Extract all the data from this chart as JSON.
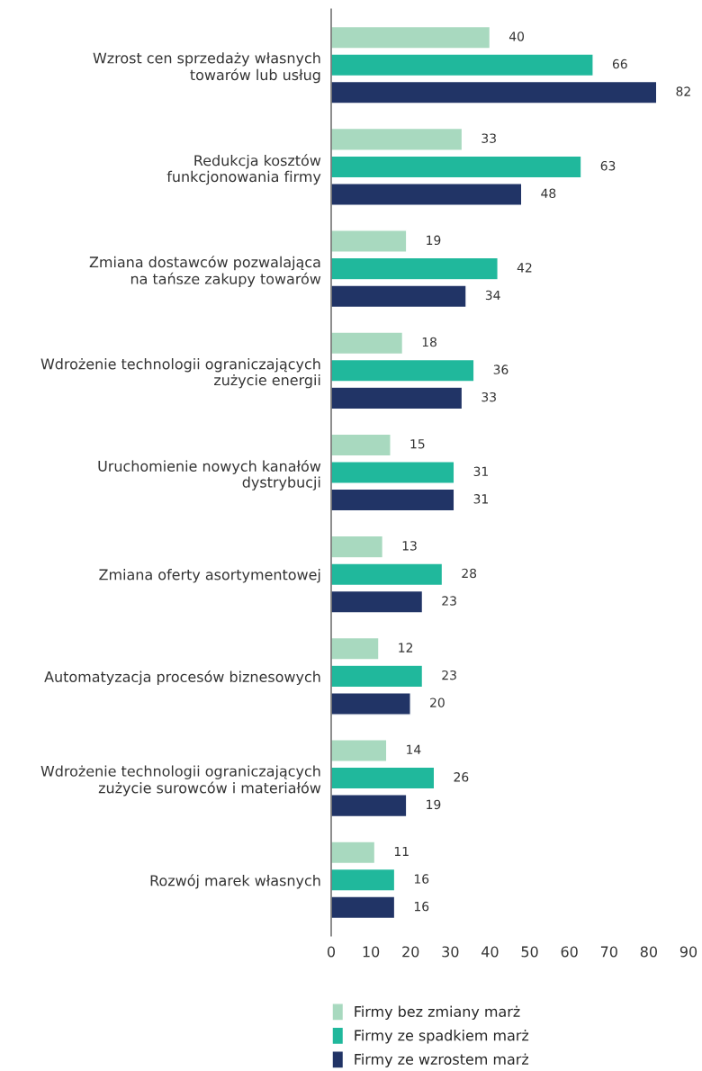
{
  "chart_data": {
    "type": "bar",
    "orientation": "horizontal",
    "categories": [
      "Wzrost cen sprzedaży własnych\ntowarów lub usług",
      "Redukcja kosztów\nfunkcjonowania firmy",
      "Zmiana dostawców pozwalająca\nna tańsze zakupy towarów",
      "Wdrożenie technologii ograniczających\nzużycie energii",
      "Uruchomienie nowych kanałów\ndystrybucji",
      "Zmiana oferty asortymentowej",
      "Automatyzacja procesów biznesowych",
      "Wdrożenie technologii ograniczających\nzużycie surowców i materiałów",
      "Rozwój marek własnych"
    ],
    "series": [
      {
        "name": "Firmy bez zmiany marż",
        "color": "#a8d9bf",
        "values": [
          40,
          33,
          19,
          18,
          15,
          13,
          12,
          14,
          11
        ]
      },
      {
        "name": "Firmy ze spadkiem marż",
        "color": "#20b89c",
        "values": [
          66,
          63,
          42,
          36,
          31,
          28,
          23,
          26,
          16
        ]
      },
      {
        "name": "Firmy ze wzrostem marż",
        "color": "#213466",
        "values": [
          82,
          48,
          34,
          33,
          31,
          23,
          20,
          19,
          16
        ]
      }
    ],
    "xlim": [
      0,
      90
    ],
    "xticks": [
      0,
      10,
      20,
      30,
      40,
      50,
      60,
      70,
      80,
      90
    ],
    "data_labels": true,
    "grid": false,
    "legend": "bottom"
  }
}
